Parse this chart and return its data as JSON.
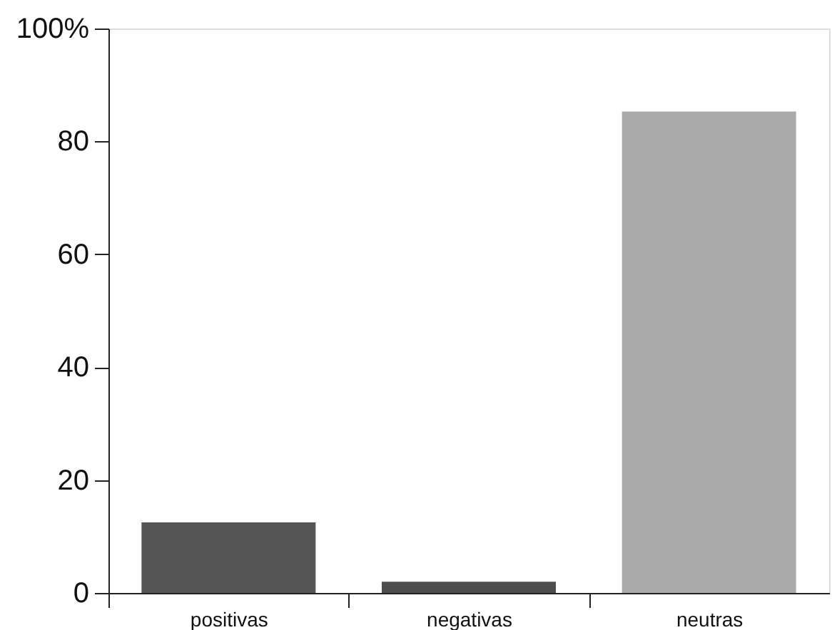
{
  "chart_data": {
    "type": "bar",
    "categories": [
      "positivas",
      "negativas",
      "neutras"
    ],
    "values": [
      12.5,
      2.0,
      85.3
    ],
    "colors": [
      "#555555",
      "#4d4d4d",
      "#aaaaaa"
    ],
    "ylim": [
      0,
      100
    ],
    "yticks": [
      0,
      20,
      40,
      60,
      80,
      {
        "value": 100,
        "label": "100%"
      }
    ],
    "grid": false
  }
}
